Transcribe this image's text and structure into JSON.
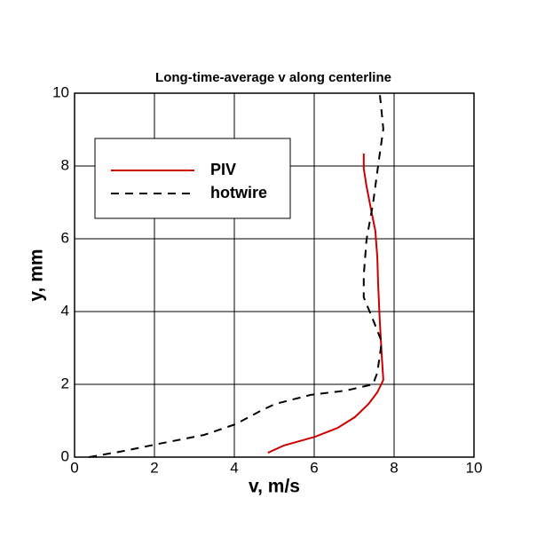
{
  "chart_data": {
    "type": "line",
    "title": "Long-time-average v along centerline",
    "x_label": "v, m/s",
    "y_label": "y, mm",
    "xlim": [
      0,
      10
    ],
    "ylim": [
      0,
      10
    ],
    "xticks": [
      0,
      2,
      4,
      6,
      8,
      10
    ],
    "yticks": [
      0,
      2,
      4,
      6,
      8,
      10
    ],
    "grid": true,
    "legend": "upper left",
    "series": [
      {
        "name": "PIV",
        "color": "#cc0000",
        "dash": "solid",
        "x": [
          4.84,
          5.24,
          6.02,
          6.58,
          7.02,
          7.36,
          7.58,
          7.73,
          7.69,
          7.64,
          7.6,
          7.58,
          7.53,
          7.44,
          7.31,
          7.24,
          7.24
        ],
        "values": [
          0.12,
          0.32,
          0.56,
          0.8,
          1.1,
          1.46,
          1.78,
          2.12,
          2.8,
          3.78,
          4.76,
          5.49,
          6.22,
          6.71,
          7.44,
          7.93,
          8.34
        ]
      },
      {
        "name": "hotwire",
        "color": "#000000",
        "dash": "dashed",
        "x": [
          0.36,
          1.24,
          2.13,
          3.24,
          4.02,
          4.69,
          5.02,
          5.91,
          6.8,
          7.47,
          7.58,
          7.69,
          7.47,
          7.24,
          7.24,
          7.31,
          7.47,
          7.62,
          7.73,
          7.64
        ],
        "values": [
          0,
          0.17,
          0.37,
          0.61,
          0.9,
          1.29,
          1.46,
          1.71,
          1.83,
          2.0,
          2.32,
          3.17,
          3.78,
          4.39,
          5.0,
          5.98,
          6.95,
          8.17,
          9.02,
          10
        ]
      }
    ]
  }
}
